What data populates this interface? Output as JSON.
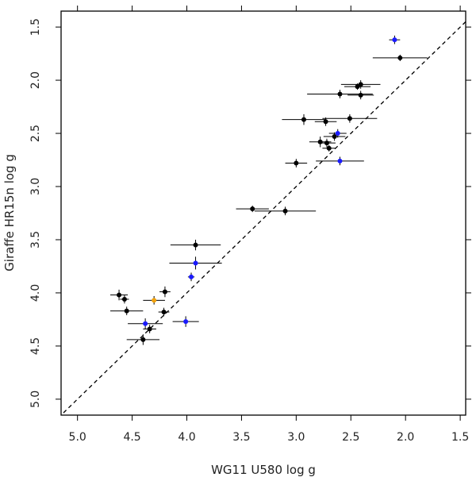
{
  "chart_data": {
    "type": "scatter",
    "title": "",
    "xlabel": "WG11 U580 log g",
    "ylabel": "Giraffe HR15n log g",
    "xlim": [
      5.15,
      1.45
    ],
    "ylim": [
      5.15,
      1.35
    ],
    "x_reversed": true,
    "y_reversed": true,
    "x_ticks": [
      5.0,
      4.5,
      4.0,
      3.5,
      3.0,
      2.5,
      2.0,
      1.5
    ],
    "x_tick_labels": [
      "5.0",
      "4.5",
      "4.0",
      "3.5",
      "3.0",
      "2.5",
      "2.0",
      "1.5"
    ],
    "y_ticks": [
      1.5,
      2.0,
      2.5,
      3.0,
      3.5,
      4.0,
      4.5,
      5.0
    ],
    "y_tick_labels": [
      "1.5",
      "2.0",
      "2.5",
      "3.0",
      "3.5",
      "4.0",
      "4.5",
      "5.0"
    ],
    "grid": false,
    "reference_line": {
      "type": "one-to-one",
      "style": "dashed",
      "color": "#000000"
    },
    "colors": {
      "black": "#000000",
      "blue": "#1a1aff",
      "orange": "#f2a20c"
    },
    "points": [
      {
        "x": 2.1,
        "y": 1.62,
        "xerr": 0.05,
        "yerr": 0.04,
        "color": "blue"
      },
      {
        "x": 2.05,
        "y": 1.79,
        "xerr": 0.25,
        "yerr": 0.03,
        "color": "black"
      },
      {
        "x": 2.41,
        "y": 2.04,
        "xerr": 0.18,
        "yerr": 0.04,
        "color": "black"
      },
      {
        "x": 2.44,
        "y": 2.06,
        "xerr": 0.12,
        "yerr": 0.03,
        "color": "black"
      },
      {
        "x": 2.6,
        "y": 2.13,
        "xerr": 0.3,
        "yerr": 0.04,
        "color": "black"
      },
      {
        "x": 2.41,
        "y": 2.14,
        "xerr": 0.12,
        "yerr": 0.04,
        "color": "black"
      },
      {
        "x": 2.51,
        "y": 2.36,
        "xerr": 0.25,
        "yerr": 0.04,
        "color": "black"
      },
      {
        "x": 2.93,
        "y": 2.37,
        "xerr": 0.2,
        "yerr": 0.05,
        "color": "black"
      },
      {
        "x": 2.73,
        "y": 2.39,
        "xerr": 0.1,
        "yerr": 0.04,
        "color": "black"
      },
      {
        "x": 2.62,
        "y": 2.5,
        "xerr": 0.08,
        "yerr": 0.04,
        "color": "blue"
      },
      {
        "x": 2.65,
        "y": 2.53,
        "xerr": 0.1,
        "yerr": 0.04,
        "color": "black"
      },
      {
        "x": 2.78,
        "y": 2.58,
        "xerr": 0.1,
        "yerr": 0.05,
        "color": "black"
      },
      {
        "x": 2.72,
        "y": 2.59,
        "xerr": 0.08,
        "yerr": 0.04,
        "color": "black"
      },
      {
        "x": 2.7,
        "y": 2.64,
        "xerr": 0.06,
        "yerr": 0.03,
        "color": "black"
      },
      {
        "x": 2.6,
        "y": 2.76,
        "xerr": 0.22,
        "yerr": 0.04,
        "color": "blue"
      },
      {
        "x": 3.0,
        "y": 2.78,
        "xerr": 0.1,
        "yerr": 0.04,
        "color": "black"
      },
      {
        "x": 3.4,
        "y": 3.21,
        "xerr": 0.15,
        "yerr": 0.03,
        "color": "black"
      },
      {
        "x": 3.1,
        "y": 3.23,
        "xerr": 0.28,
        "yerr": 0.04,
        "color": "black"
      },
      {
        "x": 3.92,
        "y": 3.55,
        "xerr": 0.23,
        "yerr": 0.05,
        "color": "black"
      },
      {
        "x": 3.92,
        "y": 3.72,
        "xerr": 0.24,
        "yerr": 0.06,
        "color": "blue"
      },
      {
        "x": 3.96,
        "y": 3.85,
        "xerr": 0.03,
        "yerr": 0.04,
        "color": "blue"
      },
      {
        "x": 4.2,
        "y": 3.99,
        "xerr": 0.05,
        "yerr": 0.05,
        "color": "black"
      },
      {
        "x": 4.62,
        "y": 4.02,
        "xerr": 0.08,
        "yerr": 0.05,
        "color": "black"
      },
      {
        "x": 4.57,
        "y": 4.06,
        "xerr": 0.04,
        "yerr": 0.04,
        "color": "black"
      },
      {
        "x": 4.3,
        "y": 4.07,
        "xerr": 0.1,
        "yerr": 0.04,
        "color": "orange"
      },
      {
        "x": 4.55,
        "y": 4.17,
        "xerr": 0.15,
        "yerr": 0.04,
        "color": "black"
      },
      {
        "x": 4.21,
        "y": 4.18,
        "xerr": 0.05,
        "yerr": 0.04,
        "color": "black"
      },
      {
        "x": 4.01,
        "y": 4.27,
        "xerr": 0.12,
        "yerr": 0.05,
        "color": "blue"
      },
      {
        "x": 4.38,
        "y": 4.29,
        "xerr": 0.16,
        "yerr": 0.05,
        "color": "blue"
      },
      {
        "x": 4.34,
        "y": 4.34,
        "xerr": 0.06,
        "yerr": 0.04,
        "color": "black"
      },
      {
        "x": 4.4,
        "y": 4.44,
        "xerr": 0.15,
        "yerr": 0.05,
        "color": "black"
      }
    ]
  }
}
